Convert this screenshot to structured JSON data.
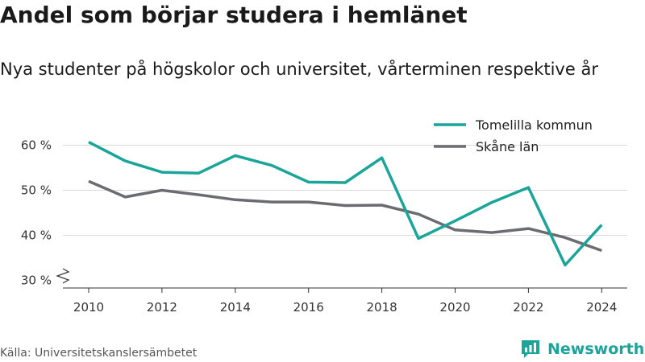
{
  "header": {
    "title": "Andel som börjar studera i hemlänet",
    "subtitle": "Nya studenter på högskolor och universitet, vårterminen respektive år"
  },
  "footer": {
    "source": "Källa: Universitetskanslersämbetet",
    "brand": "Newsworthy"
  },
  "colors": {
    "tomelilla": "#1aa49a",
    "skane": "#6b6b72",
    "grid": "#d9d9d9",
    "axis": "#333333"
  },
  "chart_data": {
    "type": "line",
    "title": "Andel som börjar studera i hemlänet",
    "subtitle": "Nya studenter på högskolor och universitet, vårterminen respektive år",
    "x": [
      2010,
      2011,
      2012,
      2013,
      2014,
      2015,
      2016,
      2017,
      2018,
      2019,
      2020,
      2021,
      2022,
      2023,
      2024
    ],
    "xticks": [
      "2010",
      "2012",
      "2014",
      "2016",
      "2018",
      "2020",
      "2022",
      "2024"
    ],
    "yticks": [
      "30 %",
      "40 %",
      "50 %",
      "60 %"
    ],
    "ylim": [
      30,
      65
    ],
    "xlim": [
      2009.3,
      2024.6
    ],
    "y_axis_break": true,
    "grid": true,
    "legend": "top-right",
    "series": [
      {
        "name": "Tomelilla kommun",
        "color": "#1aa49a",
        "values": [
          60.7,
          56.5,
          54.0,
          53.8,
          57.7,
          55.5,
          51.8,
          51.7,
          57.2,
          39.3,
          43.2,
          47.3,
          50.6,
          33.4,
          42.3
        ]
      },
      {
        "name": "Skåne län",
        "color": "#6b6b72",
        "values": [
          52.0,
          48.5,
          50.0,
          49.0,
          47.9,
          47.4,
          47.4,
          46.6,
          46.7,
          44.7,
          41.2,
          40.6,
          41.5,
          39.5,
          36.6
        ]
      }
    ]
  }
}
